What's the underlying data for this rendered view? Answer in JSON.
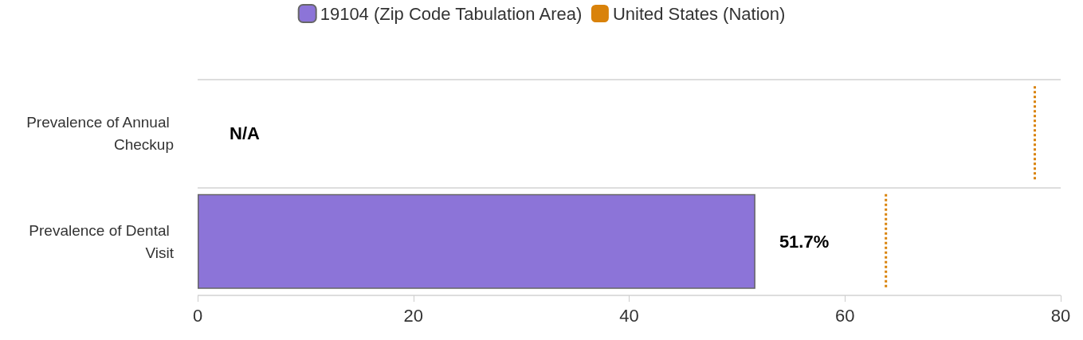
{
  "chart_data": {
    "type": "bar",
    "orientation": "horizontal",
    "categories": [
      "Prevalence of Annual Checkup",
      "Prevalence of Dental Visit"
    ],
    "series": [
      {
        "name": "19104 (Zip Code Tabulation Area)",
        "color": "#8c74d8",
        "values": [
          null,
          51.7
        ],
        "value_labels": [
          "N/A",
          "51.7%"
        ]
      }
    ],
    "ref_lines": [
      {
        "axis": "x",
        "value": 77.6,
        "label": "United States (Nation)",
        "color": "#d9820a",
        "line_style": "dotted"
      },
      {
        "axis": "x",
        "value": 63.8,
        "color": "#d9820a",
        "line_style": "dotted"
      }
    ],
    "xlim": [
      0,
      80
    ],
    "xticks": [
      0,
      20,
      40,
      60,
      80
    ],
    "grid": "y",
    "legend": "top"
  }
}
